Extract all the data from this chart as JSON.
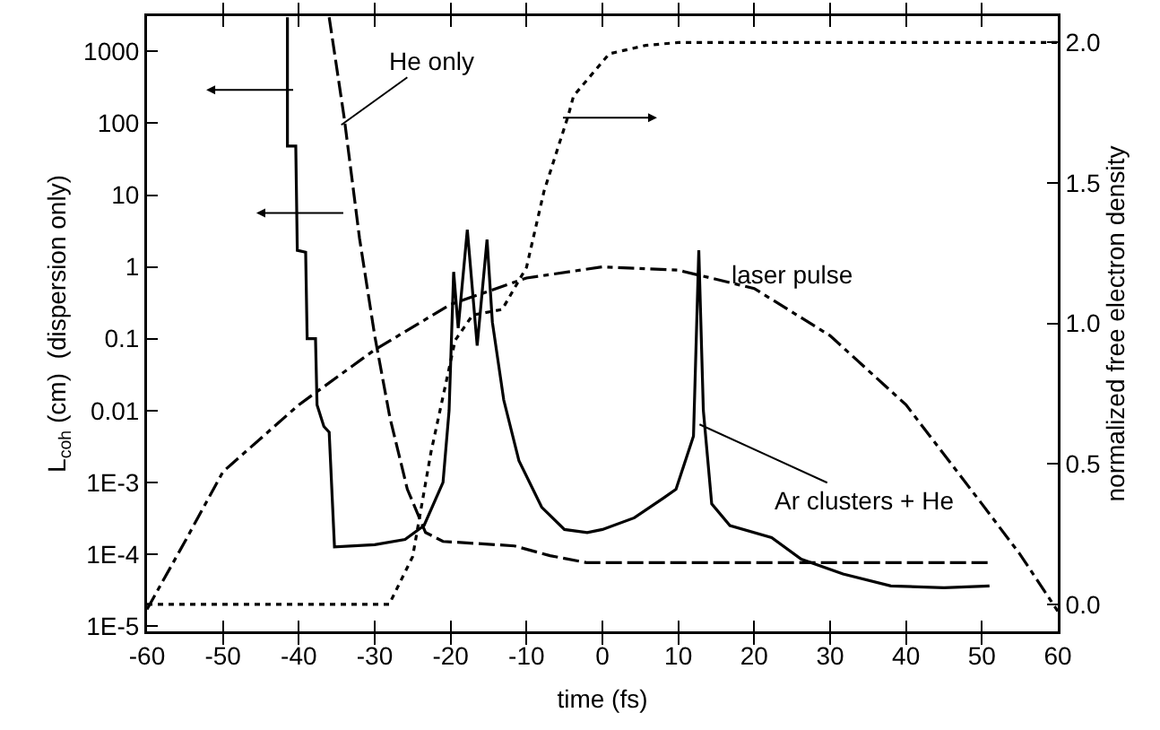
{
  "chart_data": {
    "type": "line",
    "xlabel": "time (fs)",
    "ylabel": "L$_{coh}$ (cm)  (dispersion only)",
    "y2label": "normalized free electron density",
    "xlim": [
      -60,
      60
    ],
    "xticks": [
      -60,
      -50,
      -40,
      -30,
      -20,
      -10,
      0,
      10,
      20,
      30,
      40,
      50,
      60
    ],
    "ylim": [
      8.4e-06,
      3100
    ],
    "log": "y",
    "yticks": [
      {
        "value": 1e-05,
        "label": "1E-5"
      },
      {
        "value": 0.0001,
        "label": "1E-4"
      },
      {
        "value": 0.001,
        "label": "1E-3"
      },
      0.01,
      0.1,
      1,
      10,
      100,
      1000
    ],
    "y2lim": [
      -0.096,
      2.094
    ],
    "y2ticks": [
      {
        "value": 0,
        "label": "0.0"
      },
      0.5,
      {
        "value": 1,
        "label": "1.0"
      },
      1.5,
      {
        "value": 2,
        "label": "2.0"
      }
    ],
    "grid": false,
    "marker": "none",
    "series": [
      {
        "color": "#000000",
        "line_style": "solid",
        "x": [
          -41.5,
          -41.5,
          -40.4,
          -40.2,
          -39.1,
          -38.9,
          -37.8,
          -37.6,
          -36.7,
          -36,
          -35.3,
          -30,
          -26,
          -23.5,
          -21,
          -20.2,
          -19.6,
          -19,
          -17.8,
          -16.5,
          -15.2,
          -14.5,
          -13,
          -11,
          -8,
          -5,
          -2,
          0,
          4.2,
          8,
          9.7,
          12,
          12.7,
          13.3,
          14.4,
          16.8,
          22.3,
          26.2,
          31.7,
          38,
          45,
          51
        ],
        "values": [
          3000,
          48,
          48,
          1.7,
          1.6,
          0.1,
          0.1,
          0.012,
          0.006,
          0.005,
          0.000126,
          0.000135,
          0.00016,
          0.00025,
          0.001,
          0.01,
          0.85,
          0.14,
          3.3,
          0.08,
          2.4,
          0.17,
          0.014,
          0.002,
          0.00045,
          0.00022,
          0.0002,
          0.00022,
          0.00032,
          0.0006,
          0.0008,
          0.0044,
          1.7,
          0.01,
          0.0005,
          0.00025,
          0.00017,
          8.5e-05,
          5.3e-05,
          3.6e-05,
          3.4e-05,
          3.6e-05
        ]
      },
      {
        "color": "#000000",
        "line_style": "dashed",
        "x": [
          -36,
          -34,
          -32,
          -30,
          -28,
          -25.7,
          -23.3,
          -21,
          -16.3,
          -11.6,
          -6.9,
          -2.1,
          51
        ],
        "values": [
          3000,
          115,
          2.5,
          0.11,
          0.008,
          0.0008,
          0.0002,
          0.00015,
          0.00014,
          0.00013,
          9.5e-05,
          7.6e-05,
          7.6e-05
        ]
      },
      {
        "color": "#000000",
        "line_style": "dashed-dotted",
        "x": [
          -60,
          -55,
          -50,
          -40,
          -30,
          -20,
          -10,
          0,
          10,
          20,
          30,
          40,
          50,
          55,
          60
        ],
        "values": [
          1.7e-05,
          0.00015,
          0.0014,
          0.012,
          0.07,
          0.3,
          0.7,
          1,
          0.9,
          0.5,
          0.11,
          0.012,
          0.0005,
          0.0001,
          1.6e-05
        ]
      },
      {
        "color": "#000000",
        "line_style": "dotted",
        "axis": "y2",
        "x": [
          -60,
          -28.1,
          -25,
          -22.6,
          -19.4,
          -17.1,
          -13.2,
          -10,
          -7.7,
          -4.5,
          -3.8,
          0.9,
          5.7,
          10,
          60
        ],
        "values": [
          0,
          0,
          0.17,
          0.54,
          0.94,
          1.03,
          1.05,
          1.2,
          1.47,
          1.74,
          1.81,
          1.96,
          1.99,
          2,
          2
        ]
      }
    ],
    "annotations": [
      {
        "text": "He only",
        "x": -34.4,
        "y": 95
      },
      "laser pulse",
      {
        "text": "Ar clusters + He",
        "x": 12.8,
        "y": 0.0064
      }
    ]
  }
}
